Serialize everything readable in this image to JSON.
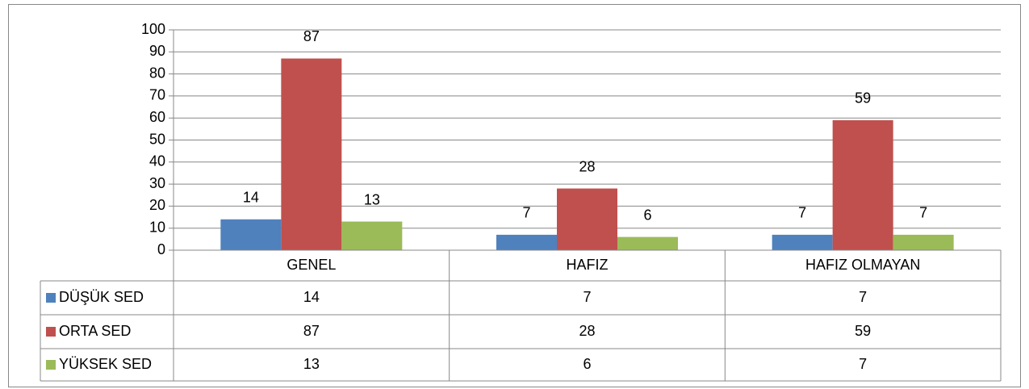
{
  "chart_data": {
    "type": "bar",
    "categories": [
      "GENEL",
      "HAFIZ",
      "HAFIZ OLMAYAN"
    ],
    "series": [
      {
        "name": "DÜŞÜK SED",
        "color": "#4f81bd",
        "values": [
          14,
          7,
          7
        ]
      },
      {
        "name": "ORTA SED",
        "color": "#c0504d",
        "values": [
          87,
          28,
          59
        ]
      },
      {
        "name": "YÜKSEK SED",
        "color": "#9bbb59",
        "values": [
          13,
          6,
          7
        ]
      }
    ],
    "ylim": [
      0,
      100
    ],
    "yticks": [
      0,
      10,
      20,
      30,
      40,
      50,
      60,
      70,
      80,
      90,
      100
    ],
    "grid": true
  }
}
